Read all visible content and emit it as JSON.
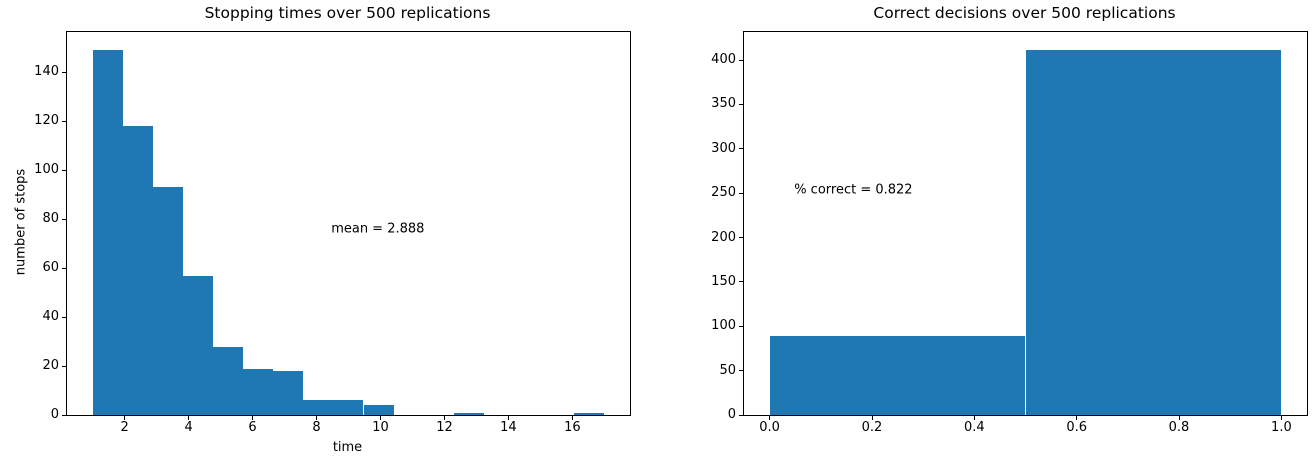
{
  "figure": {
    "background": "#ffffff",
    "text_color": "#000000"
  },
  "chart_data": [
    {
      "type": "bar",
      "subtype": "histogram",
      "title": "Stopping times over 500 replications",
      "xlabel": "time",
      "ylabel": "number of stops",
      "bar_color": "#1f77b4",
      "total_replications": 500,
      "bin_range": [
        1,
        17
      ],
      "num_bins": 17,
      "values": [
        149,
        118,
        93,
        57,
        28,
        19,
        18,
        6,
        6,
        4,
        0,
        0,
        1,
        0,
        0,
        0,
        1
      ],
      "xlim": [
        0.2,
        17.8
      ],
      "ylim": [
        0,
        156.45
      ],
      "xticks": [
        2,
        4,
        6,
        8,
        10,
        12,
        14,
        16
      ],
      "xtick_labels": [
        "2",
        "4",
        "6",
        "8",
        "10",
        "12",
        "14",
        "16"
      ],
      "yticks": [
        0,
        20,
        40,
        60,
        80,
        100,
        120,
        140
      ],
      "ytick_labels": [
        "0",
        "20",
        "40",
        "60",
        "80",
        "100",
        "120",
        "140"
      ],
      "grid": false,
      "legend": null,
      "annotation": {
        "text": "mean = 2.888",
        "x": 8.46,
        "y": 75.8
      }
    },
    {
      "type": "bar",
      "subtype": "histogram",
      "title": "Correct decisions over 500 replications",
      "xlabel": "",
      "ylabel": "",
      "bar_color": "#1f77b4",
      "total_replications": 500,
      "bin_range": [
        0,
        1
      ],
      "num_bins": 2,
      "values": [
        89,
        411
      ],
      "xlim": [
        -0.05,
        1.05
      ],
      "ylim": [
        0,
        431.55
      ],
      "xticks": [
        0,
        0.2,
        0.4,
        0.6,
        0.8,
        1.0
      ],
      "xtick_labels": [
        "0.0",
        "0.2",
        "0.4",
        "0.6",
        "0.8",
        "1.0"
      ],
      "yticks": [
        0,
        50,
        100,
        150,
        200,
        250,
        300,
        350,
        400
      ],
      "ytick_labels": [
        "0",
        "50",
        "100",
        "150",
        "200",
        "250",
        "300",
        "350",
        "400"
      ],
      "grid": false,
      "legend": null,
      "annotation": {
        "text": "% correct = 0.822",
        "x": 0.048,
        "y": 253.5
      }
    }
  ]
}
